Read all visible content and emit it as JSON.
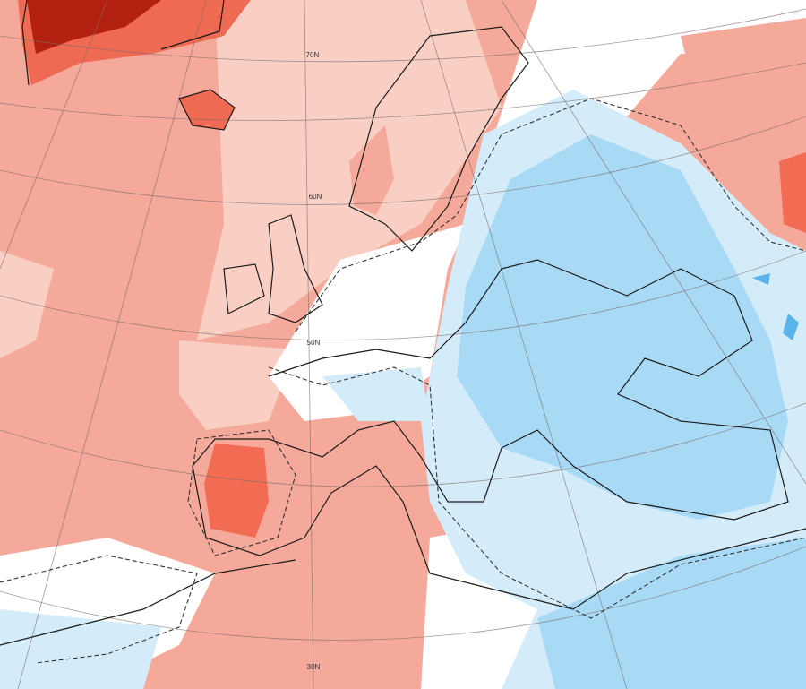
{
  "latitude_labels": [
    "70N",
    "60N",
    "50N",
    "30N"
  ]
}
